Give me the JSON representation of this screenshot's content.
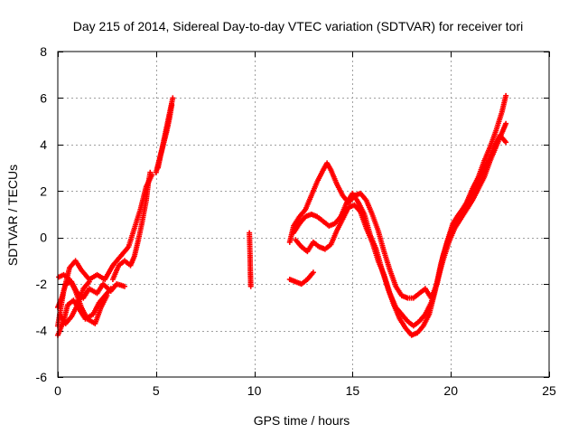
{
  "chart_data": {
    "type": "scatter",
    "title": "Day 215 of 2014, Sidereal Day-to-day VTEC variation (SDTVAR) for receiver tori",
    "xlabel": "GPS time / hours",
    "ylabel": "SDTVAR / TECUs",
    "xlim": [
      0,
      25
    ],
    "ylim": [
      -6,
      8
    ],
    "xticks": [
      0,
      5,
      10,
      15,
      20,
      25
    ],
    "yticks": [
      -6,
      -4,
      -2,
      0,
      2,
      4,
      6,
      8
    ],
    "grid": true,
    "legend": "none",
    "marker": "+",
    "colors": {
      "series": "#ff0000",
      "grid": "#a0a0a0",
      "axes": "#000000",
      "background": "#ffffff"
    },
    "series": [
      {
        "name": "SDTVAR",
        "tracks": [
          [
            [
              0.0,
              -3.8
            ],
            [
              0.3,
              -2.3
            ],
            [
              0.6,
              -1.3
            ],
            [
              0.9,
              -1.0
            ],
            [
              1.2,
              -1.4
            ],
            [
              1.6,
              -1.8
            ],
            [
              2.0,
              -1.6
            ],
            [
              2.4,
              -1.8
            ],
            [
              2.8,
              -1.2
            ],
            [
              3.2,
              -0.8
            ],
            [
              3.6,
              -0.4
            ],
            [
              3.9,
              0.4
            ],
            [
              4.2,
              1.2
            ],
            [
              4.5,
              2.2
            ],
            [
              4.8,
              2.7
            ]
          ],
          [
            [
              0.0,
              -3.0
            ],
            [
              0.2,
              -2.6
            ],
            [
              0.4,
              -2.0
            ],
            [
              0.7,
              -1.9
            ],
            [
              1.0,
              -2.4
            ],
            [
              1.3,
              -2.6
            ],
            [
              1.6,
              -2.2
            ],
            [
              2.0,
              -2.4
            ],
            [
              2.3,
              -2.0
            ],
            [
              2.7,
              -2.3
            ],
            [
              3.0,
              -2.0
            ],
            [
              3.4,
              -2.1
            ]
          ],
          [
            [
              0.0,
              -4.2
            ],
            [
              0.3,
              -3.6
            ],
            [
              0.5,
              -2.9
            ],
            [
              0.8,
              -2.7
            ],
            [
              1.1,
              -3.1
            ],
            [
              1.4,
              -3.5
            ],
            [
              1.8,
              -3.3
            ],
            [
              2.1,
              -2.8
            ],
            [
              2.4,
              -2.5
            ],
            [
              2.7,
              -2.2
            ]
          ],
          [
            [
              0.05,
              -1.7
            ],
            [
              0.3,
              -1.6
            ],
            [
              0.6,
              -1.8
            ],
            [
              0.9,
              -2.3
            ],
            [
              1.2,
              -3.0
            ],
            [
              1.5,
              -3.5
            ],
            [
              1.9,
              -3.7
            ],
            [
              2.2,
              -3.0
            ],
            [
              2.5,
              -2.5
            ]
          ],
          [
            [
              0.1,
              -3.3
            ],
            [
              0.4,
              -3.7
            ],
            [
              0.7,
              -3.4
            ],
            [
              1.0,
              -2.9
            ],
            [
              1.3,
              -2.2
            ],
            [
              1.6,
              -1.9
            ]
          ],
          [
            [
              2.8,
              -1.8
            ],
            [
              3.1,
              -1.2
            ],
            [
              3.4,
              -1.0
            ],
            [
              3.7,
              -1.2
            ],
            [
              3.9,
              -0.8
            ],
            [
              4.1,
              -0.1
            ],
            [
              4.3,
              0.7
            ],
            [
              4.5,
              1.6
            ],
            [
              4.6,
              2.3
            ],
            [
              4.7,
              2.8
            ]
          ],
          [
            [
              5.0,
              2.8
            ],
            [
              5.15,
              3.3
            ],
            [
              5.3,
              3.8
            ],
            [
              5.45,
              4.4
            ],
            [
              5.6,
              5.0
            ],
            [
              5.75,
              5.6
            ],
            [
              5.85,
              6.0
            ]
          ],
          [
            [
              5.1,
              3.0
            ],
            [
              5.25,
              3.6
            ],
            [
              5.4,
              4.1
            ],
            [
              5.55,
              4.6
            ],
            [
              5.7,
              5.2
            ],
            [
              5.8,
              5.7
            ]
          ],
          [
            [
              11.8,
              -0.2
            ],
            [
              12.0,
              0.5
            ],
            [
              12.3,
              0.9
            ],
            [
              12.6,
              1.2
            ],
            [
              12.9,
              1.8
            ],
            [
              13.2,
              2.4
            ],
            [
              13.5,
              2.9
            ],
            [
              13.7,
              3.2
            ],
            [
              13.9,
              2.9
            ],
            [
              14.2,
              2.3
            ],
            [
              14.5,
              1.8
            ],
            [
              14.8,
              1.5
            ],
            [
              15.1,
              1.8
            ],
            [
              15.4,
              1.9
            ],
            [
              15.7,
              1.6
            ],
            [
              16.0,
              1.0
            ],
            [
              16.3,
              0.3
            ],
            [
              16.6,
              -0.6
            ],
            [
              16.9,
              -1.4
            ],
            [
              17.2,
              -2.1
            ],
            [
              17.5,
              -2.5
            ],
            [
              17.8,
              -2.6
            ],
            [
              18.1,
              -2.6
            ],
            [
              18.4,
              -2.4
            ],
            [
              18.7,
              -2.2
            ],
            [
              19.0,
              -2.6
            ],
            [
              19.3,
              -2.0
            ],
            [
              19.6,
              -0.8
            ],
            [
              19.9,
              0.0
            ],
            [
              20.2,
              0.7
            ],
            [
              20.5,
              1.1
            ],
            [
              20.8,
              1.5
            ],
            [
              21.1,
              2.1
            ],
            [
              21.4,
              2.6
            ],
            [
              21.7,
              3.3
            ],
            [
              22.0,
              3.9
            ],
            [
              22.3,
              4.6
            ],
            [
              22.6,
              5.4
            ],
            [
              22.8,
              6.1
            ]
          ],
          [
            [
              12.0,
              0.2
            ],
            [
              12.3,
              0.6
            ],
            [
              12.6,
              0.9
            ],
            [
              12.9,
              1.0
            ],
            [
              13.2,
              0.9
            ],
            [
              13.5,
              0.7
            ],
            [
              13.8,
              0.5
            ],
            [
              14.1,
              0.6
            ],
            [
              14.4,
              0.9
            ],
            [
              14.7,
              1.5
            ],
            [
              15.0,
              1.9
            ],
            [
              15.3,
              1.5
            ],
            [
              15.6,
              1.0
            ],
            [
              15.9,
              0.1
            ],
            [
              16.2,
              -0.5
            ],
            [
              16.5,
              -1.4
            ],
            [
              16.8,
              -2.2
            ],
            [
              17.1,
              -2.9
            ],
            [
              17.4,
              -3.5
            ],
            [
              17.7,
              -3.9
            ],
            [
              18.0,
              -4.2
            ],
            [
              18.3,
              -4.1
            ],
            [
              18.6,
              -3.8
            ],
            [
              18.9,
              -3.3
            ],
            [
              19.2,
              -2.3
            ],
            [
              19.5,
              -1.1
            ],
            [
              19.8,
              -0.2
            ],
            [
              20.1,
              0.6
            ],
            [
              20.4,
              1.0
            ],
            [
              20.7,
              1.3
            ],
            [
              21.0,
              1.8
            ],
            [
              21.3,
              2.2
            ],
            [
              21.6,
              2.8
            ],
            [
              21.9,
              3.3
            ],
            [
              22.2,
              3.9
            ],
            [
              22.5,
              4.4
            ],
            [
              22.8,
              4.1
            ]
          ],
          [
            [
              12.1,
              -0.1
            ],
            [
              12.4,
              -0.4
            ],
            [
              12.7,
              -0.6
            ],
            [
              13.0,
              -0.2
            ],
            [
              13.3,
              -0.4
            ],
            [
              13.6,
              -0.5
            ],
            [
              13.9,
              -0.3
            ],
            [
              14.2,
              0.3
            ],
            [
              14.5,
              0.8
            ],
            [
              14.8,
              1.3
            ],
            [
              15.1,
              1.4
            ],
            [
              15.4,
              1.1
            ],
            [
              15.7,
              0.4
            ],
            [
              16.0,
              -0.2
            ],
            [
              16.3,
              -1.0
            ],
            [
              16.6,
              -1.6
            ],
            [
              16.9,
              -2.4
            ],
            [
              17.2,
              -3.0
            ],
            [
              17.5,
              -3.3
            ],
            [
              17.8,
              -3.6
            ],
            [
              18.1,
              -3.8
            ],
            [
              18.4,
              -3.6
            ],
            [
              18.7,
              -3.3
            ],
            [
              19.0,
              -2.8
            ],
            [
              19.3,
              -1.9
            ],
            [
              19.6,
              -1.0
            ],
            [
              19.9,
              -0.2
            ],
            [
              20.2,
              0.4
            ],
            [
              20.5,
              0.8
            ],
            [
              20.8,
              1.2
            ],
            [
              21.1,
              1.6
            ],
            [
              21.4,
              2.1
            ],
            [
              21.7,
              2.6
            ],
            [
              22.0,
              3.3
            ],
            [
              22.3,
              3.9
            ],
            [
              22.6,
              4.5
            ],
            [
              22.8,
              4.9
            ]
          ],
          [
            [
              11.8,
              -1.8
            ],
            [
              12.1,
              -1.9
            ],
            [
              12.4,
              -2.0
            ],
            [
              12.7,
              -1.8
            ],
            [
              13.0,
              -1.5
            ]
          ],
          [
            [
              9.75,
              0.2
            ],
            [
              9.78,
              -0.7
            ],
            [
              9.8,
              -1.5
            ],
            [
              9.82,
              -2.1
            ]
          ]
        ]
      }
    ]
  }
}
